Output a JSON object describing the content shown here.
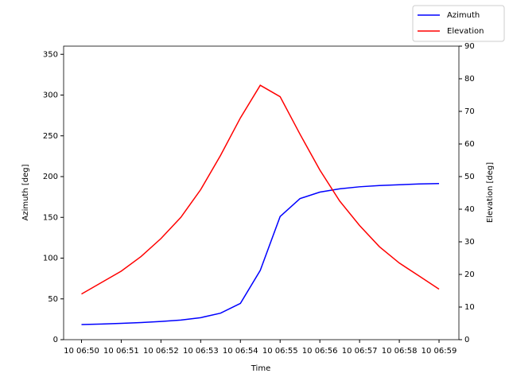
{
  "chart_data": {
    "type": "line",
    "xlabel": "Time",
    "ylabel": "Azimuth [deg]",
    "y2label": "Elevation [deg]",
    "x": [
      0,
      0.5,
      1,
      1.5,
      2,
      2.5,
      3,
      3.5,
      4,
      4.5,
      5,
      5.5,
      6,
      6.5,
      7,
      7.5,
      8,
      8.5,
      9
    ],
    "xlim": [
      -0.45,
      9.5
    ],
    "xticks": [
      {
        "value": 0,
        "label": "10 06:50"
      },
      {
        "value": 1,
        "label": "10 06:51"
      },
      {
        "value": 2,
        "label": "10 06:52"
      },
      {
        "value": 3,
        "label": "10 06:53"
      },
      {
        "value": 4,
        "label": "10 06:54"
      },
      {
        "value": 5,
        "label": "10 06:55"
      },
      {
        "value": 6,
        "label": "10 06:56"
      },
      {
        "value": 7,
        "label": "10 06:57"
      },
      {
        "value": 8,
        "label": "10 06:58"
      },
      {
        "value": 9,
        "label": "10 06:59"
      }
    ],
    "ylim": [
      0,
      360
    ],
    "yticks": [
      0,
      50,
      100,
      150,
      200,
      250,
      300,
      350
    ],
    "y2lim": [
      0,
      90
    ],
    "y2ticks": [
      0,
      10,
      20,
      30,
      40,
      50,
      60,
      70,
      80,
      90
    ],
    "legend": "upper-right",
    "series": [
      {
        "name": "Azimuth",
        "color": "#0000ff",
        "values": [
          18.5,
          19.2,
          20,
          21,
          22.3,
          24,
          27,
          32.5,
          44.5,
          85,
          151,
          173,
          181,
          185,
          187.5,
          189,
          190,
          191,
          191.5
        ]
      },
      {
        "name": "Elevation",
        "color": "#ff0000",
        "axis": "y2",
        "values": [
          14,
          17.5,
          21,
          25.5,
          31,
          37.5,
          46,
          56.5,
          68,
          78,
          74.5,
          63,
          52,
          42.5,
          35,
          28.5,
          23.5,
          19.5,
          15.5
        ]
      }
    ]
  }
}
